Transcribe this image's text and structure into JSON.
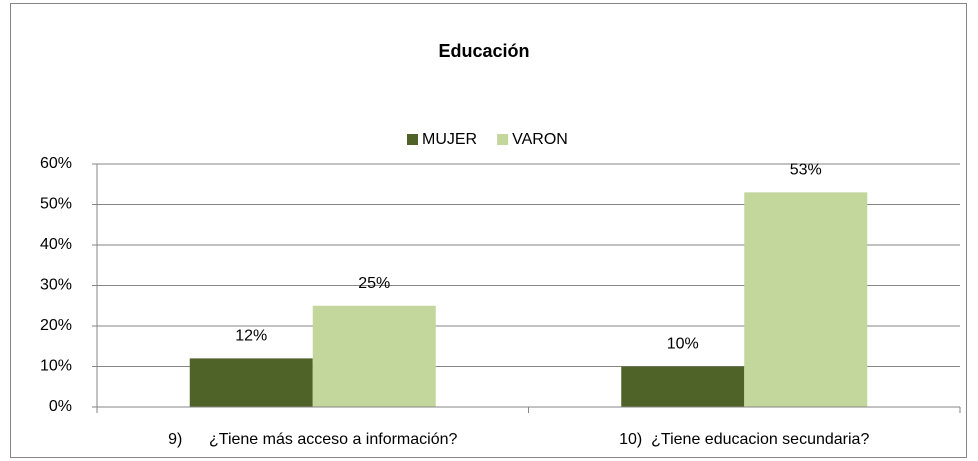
{
  "chart_data": {
    "type": "bar",
    "title": "Educación",
    "categories": [
      "9)      ¿Tiene más acceso a información?",
      "10)  ¿Tiene educacion secundaria?"
    ],
    "series": [
      {
        "name": "MUJER",
        "color": "#4f6228",
        "values": [
          12,
          10
        ],
        "value_labels": [
          "12%",
          "10%"
        ]
      },
      {
        "name": "VARON",
        "color": "#c3d69b",
        "values": [
          25,
          53
        ],
        "value_labels": [
          "25%",
          "53%"
        ]
      }
    ],
    "ylim": [
      0,
      60
    ],
    "yticks": [
      {
        "value": 0,
        "label": "0%"
      },
      {
        "value": 10,
        "label": "10%"
      },
      {
        "value": 20,
        "label": "20%"
      },
      {
        "value": 30,
        "label": "30%"
      },
      {
        "value": 40,
        "label": "40%"
      },
      {
        "value": 50,
        "label": "50%"
      },
      {
        "value": 60,
        "label": "60%"
      }
    ],
    "grid": true,
    "legend": "top"
  }
}
